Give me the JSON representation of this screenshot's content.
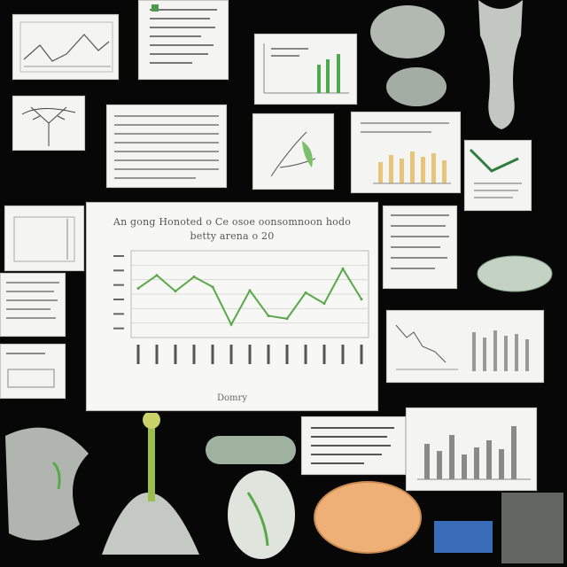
{
  "main_chart": {
    "title_line1": "An gong Honoted o Ce osoe oonsomnoon hodo",
    "title_line2": "betty arena o 20",
    "xlabel": "Domry",
    "series_color": "#5aa84a"
  },
  "chart_data": {
    "type": "line",
    "title": "An gong Honoted o Ce osoe oonsomnoon hodo betty arena o 20",
    "xlabel": "Domry",
    "ylabel": "",
    "categories": [
      "",
      "",
      "",
      "",
      "",
      "",
      "",
      "",
      "",
      "",
      "",
      "",
      ""
    ],
    "values": [
      68,
      86,
      64,
      84,
      70,
      18,
      65,
      30,
      26,
      62,
      47,
      95,
      53
    ],
    "ylim": [
      0,
      120
    ],
    "grid": true,
    "series": [
      {
        "values": [
          68,
          86,
          64,
          84,
          70,
          18,
          65,
          30,
          26,
          62,
          47,
          95,
          53
        ]
      }
    ]
  },
  "colors": {
    "background": "#070707",
    "panel": "#f4f4f2",
    "green_accent": "#5aa84a",
    "orange_bars": "#e8c37a"
  }
}
